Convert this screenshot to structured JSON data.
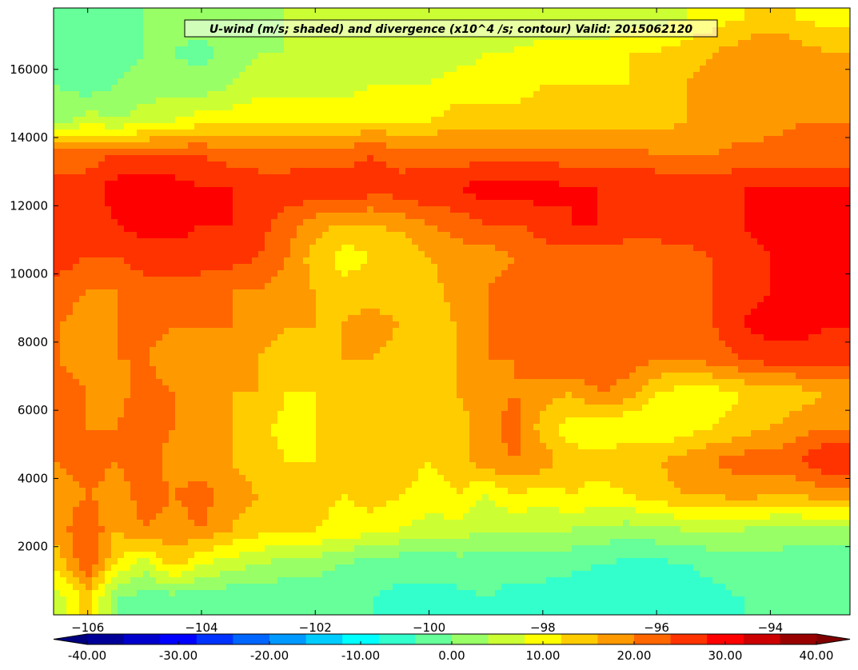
{
  "chart_data": {
    "type": "heatmap",
    "title": "U-wind (m/s; shaded) and divergence (x10^4 /s; contour) Valid: 2015062120",
    "xlabel": "",
    "ylabel": "",
    "xlim": [
      -106.6,
      -92.6
    ],
    "ylim": [
      0,
      17800
    ],
    "x_ticks": [
      -106,
      -104,
      -102,
      -100,
      -98,
      -96,
      -94
    ],
    "x_tick_labels": [
      "−106",
      "−104",
      "−102",
      "−100",
      "−98",
      "−96",
      "−94"
    ],
    "y_ticks": [
      2000,
      4000,
      6000,
      8000,
      10000,
      12000,
      14000,
      16000
    ],
    "y_tick_labels": [
      "2000",
      "4000",
      "6000",
      "8000",
      "10000",
      "12000",
      "14000",
      "16000"
    ],
    "colorbar": {
      "min": -40,
      "max": 40,
      "step": 4,
      "extend": "both",
      "ticks": [
        -40,
        -30,
        -20,
        -10,
        0,
        10,
        20,
        30,
        40
      ],
      "tick_labels": [
        "-40.00",
        "-30.00",
        "-20.00",
        "-10.00",
        "0.00",
        "10.00",
        "20.00",
        "30.00",
        "40.00"
      ],
      "colormap": "jet"
    },
    "grid": false,
    "x": [
      -106.5,
      -106,
      -105.5,
      -105,
      -104.5,
      -104,
      -103.5,
      -103,
      -102.5,
      -102,
      -101.5,
      -101,
      -100.5,
      -100,
      -99.5,
      -99,
      -98.5,
      -98,
      -97.5,
      -97,
      -96.5,
      -96,
      -95.5,
      -95,
      -94.5,
      -94,
      -93.5,
      -93
    ],
    "y": [
      500,
      1500,
      2500,
      3500,
      4500,
      5500,
      6500,
      7500,
      8500,
      9500,
      10500,
      11500,
      12500,
      13500,
      14500,
      15500,
      16500,
      17500
    ],
    "z": [
      [
        6,
        14,
        0,
        -2,
        -2,
        -2,
        -3,
        -2,
        -3,
        -3,
        -4,
        -4,
        -5,
        -5,
        -5,
        -4,
        -5,
        -5,
        -6,
        -6,
        -7,
        -7,
        -6,
        -5,
        -4,
        -4,
        -4,
        -4
      ],
      [
        14,
        24,
        12,
        6,
        14,
        8,
        6,
        4,
        2,
        2,
        0,
        -2,
        -3,
        -3,
        -2,
        -2,
        -3,
        -3,
        -3,
        -4,
        -5,
        -5,
        -4,
        -3,
        -2,
        -2,
        -3,
        -3
      ],
      [
        18,
        24,
        16,
        20,
        18,
        20,
        16,
        14,
        12,
        12,
        10,
        10,
        8,
        6,
        6,
        4,
        4,
        4,
        4,
        3,
        2,
        3,
        4,
        4,
        4,
        3,
        3,
        2
      ],
      [
        18,
        20,
        18,
        22,
        20,
        22,
        18,
        16,
        14,
        14,
        12,
        14,
        12,
        10,
        12,
        8,
        12,
        10,
        12,
        10,
        12,
        14,
        16,
        16,
        18,
        16,
        16,
        18
      ],
      [
        20,
        22,
        20,
        22,
        18,
        18,
        16,
        14,
        12,
        12,
        12,
        14,
        14,
        12,
        14,
        18,
        20,
        18,
        14,
        14,
        16,
        16,
        18,
        20,
        22,
        22,
        24,
        28
      ],
      [
        22,
        20,
        20,
        24,
        20,
        18,
        16,
        14,
        10,
        12,
        14,
        14,
        14,
        12,
        14,
        18,
        22,
        14,
        10,
        8,
        8,
        8,
        10,
        12,
        14,
        16,
        18,
        20
      ],
      [
        22,
        20,
        18,
        22,
        20,
        20,
        16,
        16,
        12,
        12,
        14,
        14,
        14,
        14,
        16,
        18,
        20,
        18,
        16,
        20,
        18,
        12,
        10,
        10,
        12,
        12,
        14,
        16
      ],
      [
        20,
        18,
        20,
        20,
        18,
        20,
        18,
        16,
        14,
        14,
        16,
        16,
        14,
        14,
        16,
        20,
        20,
        22,
        24,
        24,
        22,
        20,
        20,
        22,
        24,
        26,
        26,
        26
      ],
      [
        20,
        18,
        20,
        22,
        20,
        20,
        20,
        18,
        16,
        16,
        16,
        18,
        16,
        14,
        16,
        20,
        22,
        22,
        22,
        22,
        20,
        20,
        22,
        24,
        28,
        30,
        30,
        28
      ],
      [
        22,
        20,
        20,
        22,
        22,
        22,
        20,
        20,
        18,
        16,
        14,
        14,
        14,
        14,
        18,
        20,
        22,
        22,
        22,
        22,
        20,
        20,
        22,
        24,
        26,
        28,
        28,
        28
      ],
      [
        26,
        24,
        24,
        26,
        26,
        26,
        26,
        24,
        20,
        14,
        10,
        12,
        12,
        16,
        18,
        18,
        20,
        22,
        22,
        22,
        22,
        22,
        22,
        24,
        26,
        28,
        30,
        32
      ],
      [
        28,
        26,
        28,
        30,
        30,
        28,
        28,
        26,
        22,
        18,
        16,
        16,
        18,
        20,
        22,
        24,
        24,
        26,
        28,
        28,
        26,
        26,
        28,
        28,
        28,
        30,
        30,
        32
      ],
      [
        26,
        26,
        30,
        32,
        30,
        28,
        28,
        26,
        26,
        28,
        28,
        26,
        26,
        28,
        28,
        30,
        30,
        30,
        28,
        28,
        28,
        28,
        28,
        26,
        28,
        28,
        28,
        28
      ],
      [
        22,
        22,
        24,
        24,
        24,
        24,
        22,
        22,
        22,
        22,
        22,
        24,
        22,
        22,
        22,
        22,
        22,
        22,
        22,
        22,
        22,
        20,
        20,
        20,
        22,
        22,
        22,
        22
      ],
      [
        2,
        6,
        4,
        6,
        8,
        10,
        10,
        12,
        12,
        12,
        12,
        12,
        12,
        12,
        14,
        14,
        14,
        14,
        14,
        14,
        14,
        14,
        16,
        16,
        16,
        18,
        20,
        20
      ],
      [
        0,
        -2,
        0,
        2,
        2,
        2,
        4,
        6,
        6,
        6,
        6,
        8,
        8,
        8,
        10,
        10,
        10,
        12,
        12,
        12,
        12,
        14,
        16,
        18,
        18,
        20,
        20,
        18
      ],
      [
        -2,
        -4,
        -2,
        0,
        0,
        -2,
        2,
        4,
        4,
        4,
        4,
        6,
        6,
        6,
        6,
        8,
        8,
        10,
        10,
        10,
        12,
        12,
        14,
        16,
        18,
        20,
        18,
        16
      ],
      [
        -2,
        -4,
        -2,
        0,
        2,
        4,
        2,
        2,
        4,
        4,
        4,
        8,
        6,
        4,
        4,
        4,
        6,
        4,
        4,
        4,
        6,
        6,
        8,
        10,
        12,
        14,
        12,
        10
      ]
    ]
  }
}
